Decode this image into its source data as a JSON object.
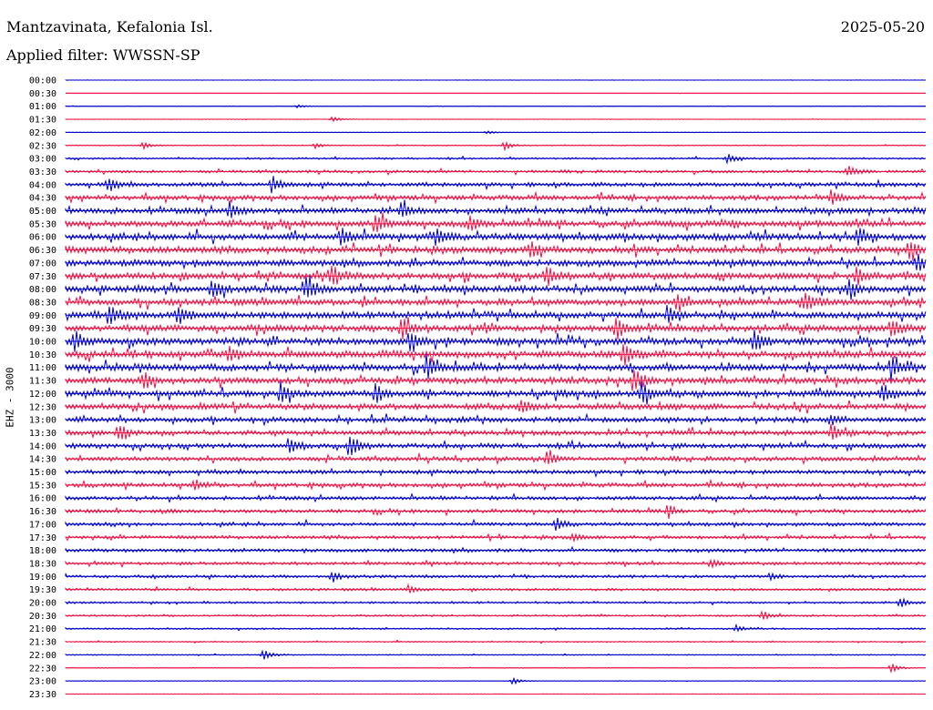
{
  "header": {
    "station": "Mantzavinata, Kefalonia Isl.",
    "date": "2025-05-20",
    "filter": "Applied filter: WWSSN-SP"
  },
  "chart_data": {
    "type": "helicorder",
    "ylabel": "EHZ - 3000",
    "row_labels": [
      "00:00",
      "00:30",
      "01:00",
      "01:30",
      "02:00",
      "02:30",
      "03:00",
      "03:30",
      "04:00",
      "04:30",
      "05:00",
      "05:30",
      "06:00",
      "06:30",
      "07:00",
      "07:30",
      "08:00",
      "08:30",
      "09:00",
      "09:30",
      "10:00",
      "10:30",
      "11:00",
      "11:30",
      "12:00",
      "12:30",
      "13:00",
      "13:30",
      "14:00",
      "14:30",
      "15:00",
      "15:30",
      "16:00",
      "16:30",
      "17:00",
      "17:30",
      "18:00",
      "18:30",
      "19:00",
      "19:30",
      "20:00",
      "20:30",
      "21:00",
      "21:30",
      "22:00",
      "22:30",
      "23:00",
      "23:30"
    ],
    "colors": [
      "#0000cc",
      "#ee1144"
    ],
    "noise_level": [
      0.2,
      0.2,
      0.3,
      0.3,
      0.3,
      0.6,
      1.2,
      1.8,
      2.6,
      3.0,
      3.6,
      4.0,
      4.2,
      4.2,
      4.0,
      4.0,
      4.2,
      4.0,
      4.2,
      4.2,
      4.2,
      4.2,
      4.2,
      4.0,
      4.0,
      3.8,
      3.2,
      3.0,
      3.0,
      2.8,
      2.6,
      2.6,
      2.4,
      2.4,
      2.2,
      2.2,
      2.2,
      2.0,
      1.8,
      1.6,
      1.4,
      1.2,
      1.0,
      0.8,
      0.6,
      0.4,
      0.3,
      0.2
    ],
    "events": [
      {
        "row": 2,
        "x": 0.27,
        "amp": 2
      },
      {
        "row": 3,
        "x": 0.31,
        "amp": 3
      },
      {
        "row": 4,
        "x": 0.49,
        "amp": 2
      },
      {
        "row": 5,
        "x": 0.09,
        "amp": 4
      },
      {
        "row": 5,
        "x": 0.29,
        "amp": 3
      },
      {
        "row": 5,
        "x": 0.51,
        "amp": 5
      },
      {
        "row": 6,
        "x": 0.77,
        "amp": 6
      },
      {
        "row": 7,
        "x": 0.91,
        "amp": 7
      },
      {
        "row": 8,
        "x": 0.05,
        "amp": 8
      },
      {
        "row": 8,
        "x": 0.24,
        "amp": 10
      },
      {
        "row": 9,
        "x": 0.89,
        "amp": 9
      },
      {
        "row": 10,
        "x": 0.39,
        "amp": 10
      },
      {
        "row": 10,
        "x": 0.19,
        "amp": 9
      },
      {
        "row": 11,
        "x": 0.36,
        "amp": 12
      },
      {
        "row": 11,
        "x": 0.47,
        "amp": 10
      },
      {
        "row": 12,
        "x": 0.32,
        "amp": 11
      },
      {
        "row": 12,
        "x": 0.43,
        "amp": 12
      },
      {
        "row": 12,
        "x": 0.92,
        "amp": 10
      },
      {
        "row": 13,
        "x": 0.54,
        "amp": 11
      },
      {
        "row": 13,
        "x": 0.98,
        "amp": 12
      },
      {
        "row": 14,
        "x": 0.99,
        "amp": 10
      },
      {
        "row": 15,
        "x": 0.31,
        "amp": 12
      },
      {
        "row": 15,
        "x": 0.56,
        "amp": 11
      },
      {
        "row": 15,
        "x": 0.92,
        "amp": 10
      },
      {
        "row": 16,
        "x": 0.17,
        "amp": 12
      },
      {
        "row": 16,
        "x": 0.28,
        "amp": 14
      },
      {
        "row": 16,
        "x": 0.91,
        "amp": 12
      },
      {
        "row": 17,
        "x": 0.86,
        "amp": 12
      },
      {
        "row": 17,
        "x": 0.71,
        "amp": 11
      },
      {
        "row": 18,
        "x": 0.05,
        "amp": 12
      },
      {
        "row": 18,
        "x": 0.13,
        "amp": 12
      },
      {
        "row": 18,
        "x": 0.7,
        "amp": 12
      },
      {
        "row": 19,
        "x": 0.39,
        "amp": 13
      },
      {
        "row": 19,
        "x": 0.64,
        "amp": 12
      },
      {
        "row": 19,
        "x": 0.96,
        "amp": 11
      },
      {
        "row": 20,
        "x": 0.01,
        "amp": 11
      },
      {
        "row": 20,
        "x": 0.4,
        "amp": 12
      },
      {
        "row": 20,
        "x": 0.8,
        "amp": 13
      },
      {
        "row": 21,
        "x": 0.19,
        "amp": 11
      },
      {
        "row": 21,
        "x": 0.65,
        "amp": 11
      },
      {
        "row": 22,
        "x": 0.42,
        "amp": 14
      },
      {
        "row": 22,
        "x": 0.96,
        "amp": 14
      },
      {
        "row": 23,
        "x": 0.09,
        "amp": 11
      },
      {
        "row": 23,
        "x": 0.66,
        "amp": 14
      },
      {
        "row": 24,
        "x": 0.25,
        "amp": 11
      },
      {
        "row": 24,
        "x": 0.36,
        "amp": 12
      },
      {
        "row": 24,
        "x": 0.67,
        "amp": 13
      },
      {
        "row": 24,
        "x": 0.95,
        "amp": 11
      },
      {
        "row": 25,
        "x": 0.53,
        "amp": 9
      },
      {
        "row": 26,
        "x": 0.89,
        "amp": 6
      },
      {
        "row": 27,
        "x": 0.06,
        "amp": 9
      },
      {
        "row": 27,
        "x": 0.89,
        "amp": 10
      },
      {
        "row": 28,
        "x": 0.26,
        "amp": 9
      },
      {
        "row": 28,
        "x": 0.33,
        "amp": 14
      },
      {
        "row": 29,
        "x": 0.56,
        "amp": 8
      },
      {
        "row": 31,
        "x": 0.15,
        "amp": 6
      },
      {
        "row": 33,
        "x": 0.7,
        "amp": 6
      },
      {
        "row": 34,
        "x": 0.57,
        "amp": 8
      },
      {
        "row": 35,
        "x": 0.59,
        "amp": 5
      },
      {
        "row": 37,
        "x": 0.75,
        "amp": 4
      },
      {
        "row": 38,
        "x": 0.31,
        "amp": 6
      },
      {
        "row": 38,
        "x": 0.82,
        "amp": 4
      },
      {
        "row": 39,
        "x": 0.4,
        "amp": 4
      },
      {
        "row": 40,
        "x": 0.97,
        "amp": 6
      },
      {
        "row": 41,
        "x": 0.81,
        "amp": 5
      },
      {
        "row": 42,
        "x": 0.78,
        "amp": 4
      },
      {
        "row": 44,
        "x": 0.23,
        "amp": 7
      },
      {
        "row": 45,
        "x": 0.96,
        "amp": 5
      },
      {
        "row": 46,
        "x": 0.52,
        "amp": 4
      }
    ]
  }
}
